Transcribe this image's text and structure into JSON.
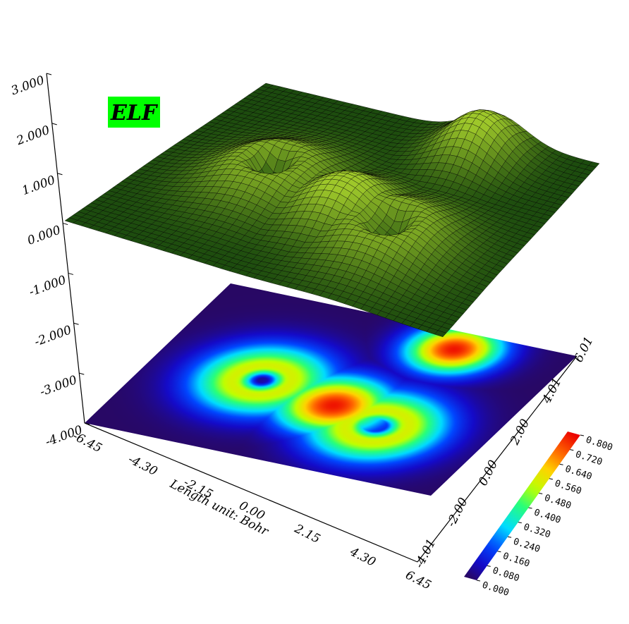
{
  "chart_data": {
    "type": "heatmap",
    "subtype": "3d-surface-with-projected-contour-plane",
    "surface_label": "ELF",
    "surface_label_bg": "#00ff00",
    "z_ticks": [
      "3.000",
      "2.000",
      "1.000",
      "0.000",
      "-1.000",
      "-2.000",
      "-3.000",
      "-4.000"
    ],
    "z_range": [
      -4.0,
      3.0
    ],
    "x_ticks": [
      "-6.45",
      "-4.30",
      "-2.15",
      "0.00",
      "2.15",
      "4.30",
      "6.45"
    ],
    "x_range": [
      -6.45,
      6.45
    ],
    "xlabel": "Length unit: Bohr",
    "y_ticks": [
      "-4.01",
      "-2.00",
      "0.00",
      "2.00",
      "4.01",
      "6.01"
    ],
    "y_range": [
      -4.01,
      6.01
    ],
    "colorbar": {
      "ticks": [
        "0.000",
        "0.080",
        "0.160",
        "0.240",
        "0.320",
        "0.400",
        "0.480",
        "0.560",
        "0.640",
        "0.720",
        "0.800"
      ],
      "range": [
        0.0,
        0.8
      ]
    },
    "basins": [
      {
        "x": 2.5,
        "y": 4.9,
        "amp": 0.78,
        "width": 1.1,
        "hole_width": 0
      },
      {
        "x": -2.4,
        "y": 0.7,
        "amp": 0.72,
        "width": 1.5,
        "hole_width": 0.45
      },
      {
        "x": 0.6,
        "y": 0.1,
        "amp": 0.78,
        "width": 1.3,
        "hole_width": 0
      },
      {
        "x": 2.6,
        "y": -0.6,
        "amp": 0.76,
        "width": 1.5,
        "hole_width": 0.5
      }
    ],
    "colors": {
      "background_plane": "#2a0a6a",
      "surface_low": "#0a3a0a",
      "surface_high": "#b8e030",
      "mesh_line": "#000000"
    }
  }
}
